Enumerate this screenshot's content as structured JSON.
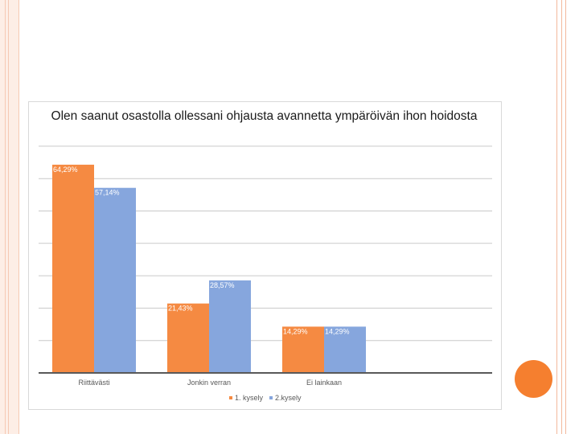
{
  "colors": {
    "series1": "#f58a42",
    "series2": "#86a6dd",
    "grid": "#c9c9c9",
    "accent": "#f57f2f"
  },
  "chart_data": {
    "type": "bar",
    "title": "Olen saanut osastolla ollessani ohjausta avannetta ympäröivän ihon hoidosta",
    "categories": [
      "Riittävästi",
      "Jonkin verran",
      "Ei lainkaan"
    ],
    "series": [
      {
        "name": "1. kysely",
        "values": [
          64.29,
          21.43,
          14.29
        ],
        "labels": [
          "64,29%",
          "21,43%",
          "14,29%"
        ]
      },
      {
        "name": "2.kysely",
        "values": [
          57.14,
          28.57,
          14.29
        ],
        "labels": [
          "57,14%",
          "28,57%",
          "14,29%"
        ]
      }
    ],
    "ylim": [
      0,
      70
    ],
    "grid": true,
    "legend": "bottom"
  }
}
